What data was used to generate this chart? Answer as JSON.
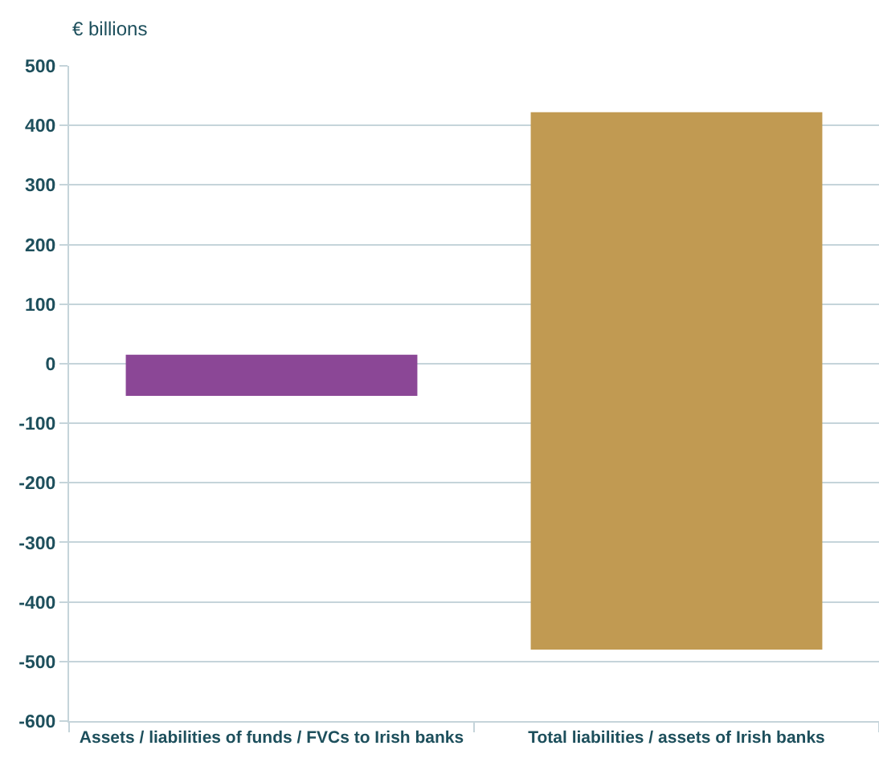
{
  "chart_data": {
    "type": "bar",
    "ylabel": "€ billions",
    "categories": [
      "Assets / liabilities of funds / FVCs to Irish banks",
      "Total liabilities / assets of Irish banks"
    ],
    "values": [
      69,
      902
    ],
    "base": [
      -54,
      -480
    ],
    "colors": [
      "#8b4796",
      "#c19a52"
    ],
    "ylim": [
      -600,
      500
    ],
    "yticks": [
      -600,
      -500,
      -400,
      -300,
      -200,
      -100,
      0,
      100,
      200,
      300,
      400,
      500
    ],
    "grid": "y"
  }
}
